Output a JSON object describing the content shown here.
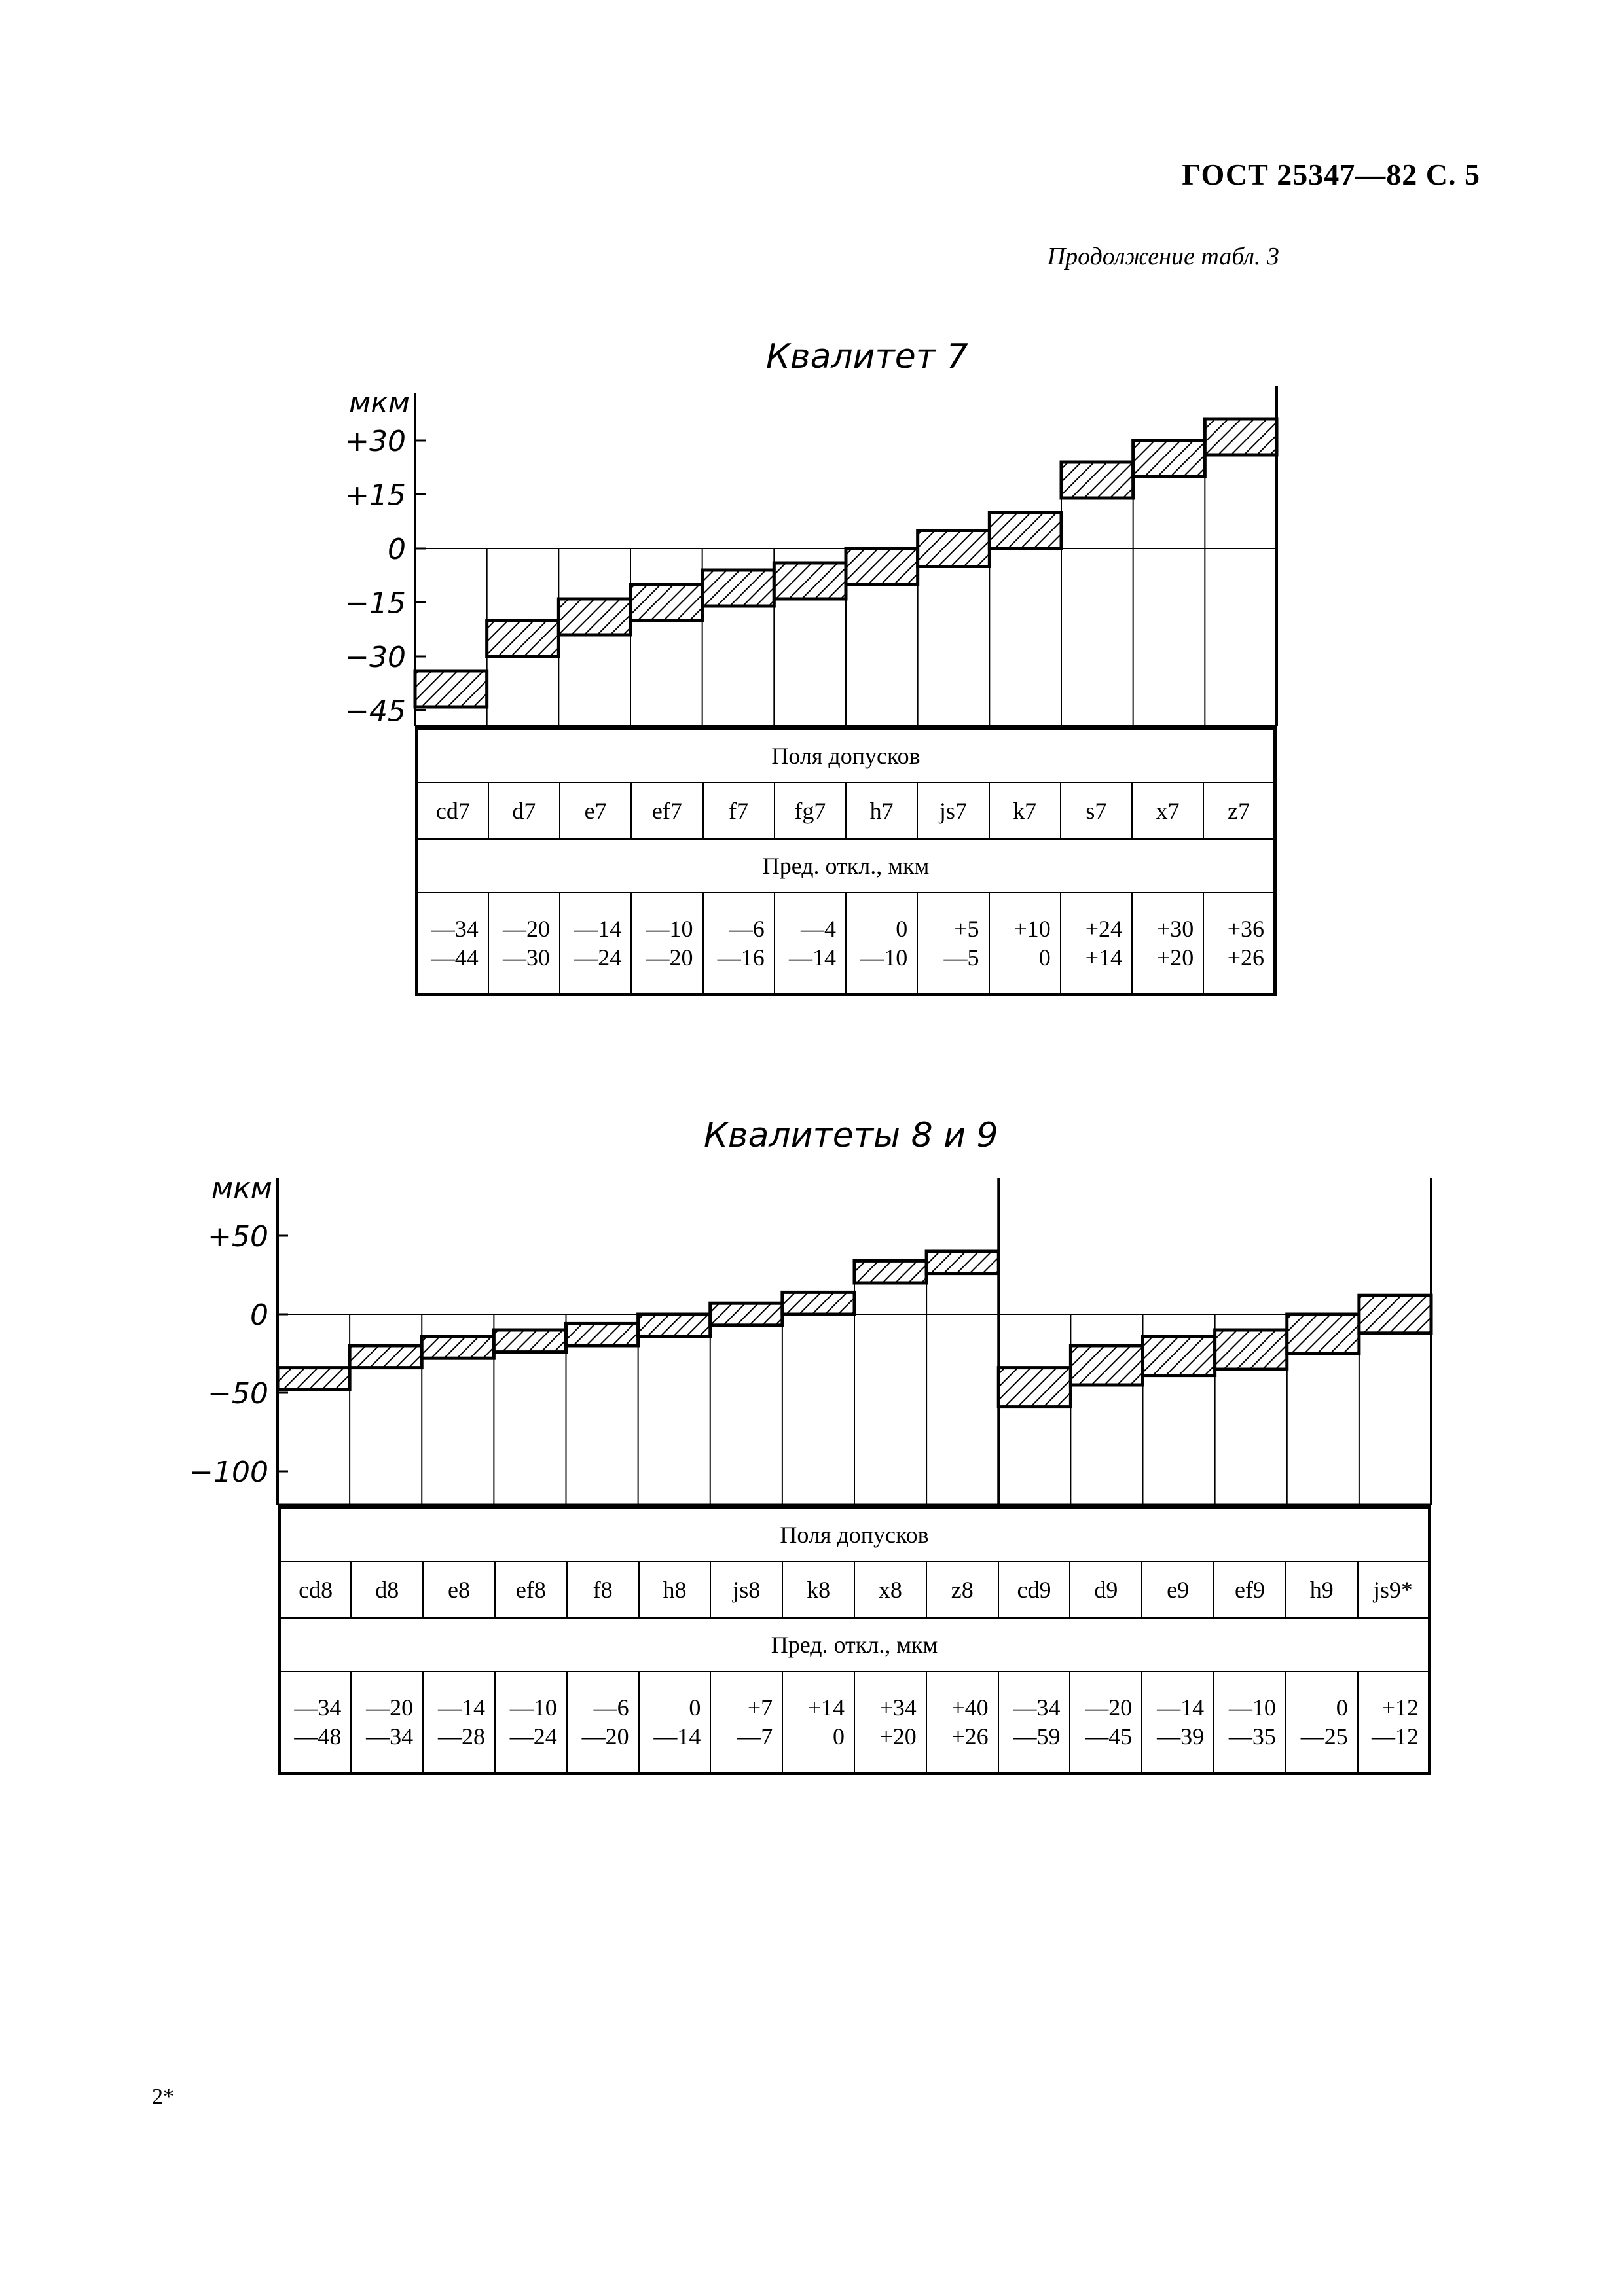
{
  "header": {
    "standard": "ГОСТ 25347—82  С. 5",
    "continuation": "Продолжение табл. 3"
  },
  "footer": {
    "mark": "2*"
  },
  "sections": [
    {
      "title": "Квалитет 7",
      "unit": "мкм",
      "yticks": [
        "+30",
        "+15",
        "0",
        "−15",
        "−30",
        "−45"
      ],
      "fields_label": "Поля допусков",
      "dev_label": "Пред. откл., мкм",
      "fields": [
        {
          "name": "cd7",
          "upper": "—34",
          "lower": "—44"
        },
        {
          "name": "d7",
          "upper": "—20",
          "lower": "—30"
        },
        {
          "name": "e7",
          "upper": "—14",
          "lower": "—24"
        },
        {
          "name": "ef7",
          "upper": "—10",
          "lower": "—20"
        },
        {
          "name": "f7",
          "upper": "—6",
          "lower": "—16"
        },
        {
          "name": "fg7",
          "upper": "—4",
          "lower": "—14"
        },
        {
          "name": "h7",
          "upper": "0",
          "lower": "—10"
        },
        {
          "name": "js7",
          "upper": "+5",
          "lower": "—5"
        },
        {
          "name": "k7",
          "upper": "+10",
          "lower": "0"
        },
        {
          "name": "s7",
          "upper": "+24",
          "lower": "+14"
        },
        {
          "name": "x7",
          "upper": "+30",
          "lower": "+20"
        },
        {
          "name": "z7",
          "upper": "+36",
          "lower": "+26"
        }
      ]
    },
    {
      "title": "Квалитеты 8 и 9",
      "unit": "мкм",
      "yticks": [
        "+50",
        "0",
        "−50",
        "−100"
      ],
      "fields_label": "Поля допусков",
      "dev_label": "Пред. откл., мкм",
      "fields": [
        {
          "name": "cd8",
          "upper": "—34",
          "lower": "—48"
        },
        {
          "name": "d8",
          "upper": "—20",
          "lower": "—34"
        },
        {
          "name": "e8",
          "upper": "—14",
          "lower": "—28"
        },
        {
          "name": "ef8",
          "upper": "—10",
          "lower": "—24"
        },
        {
          "name": "f8",
          "upper": "—6",
          "lower": "—20"
        },
        {
          "name": "h8",
          "upper": "0",
          "lower": "—14"
        },
        {
          "name": "js8",
          "upper": "+7",
          "lower": "—7"
        },
        {
          "name": "k8",
          "upper": "+14",
          "lower": "0"
        },
        {
          "name": "x8",
          "upper": "+34",
          "lower": "+20"
        },
        {
          "name": "z8",
          "upper": "+40",
          "lower": "+26"
        },
        {
          "name": "cd9",
          "upper": "—34",
          "lower": "—59"
        },
        {
          "name": "d9",
          "upper": "—20",
          "lower": "—45"
        },
        {
          "name": "e9",
          "upper": "—14",
          "lower": "—39"
        },
        {
          "name": "ef9",
          "upper": "—10",
          "lower": "—35"
        },
        {
          "name": "h9",
          "upper": "0",
          "lower": "—25"
        },
        {
          "name": "js9*",
          "upper": "+12",
          "lower": "—12"
        }
      ]
    }
  ]
}
